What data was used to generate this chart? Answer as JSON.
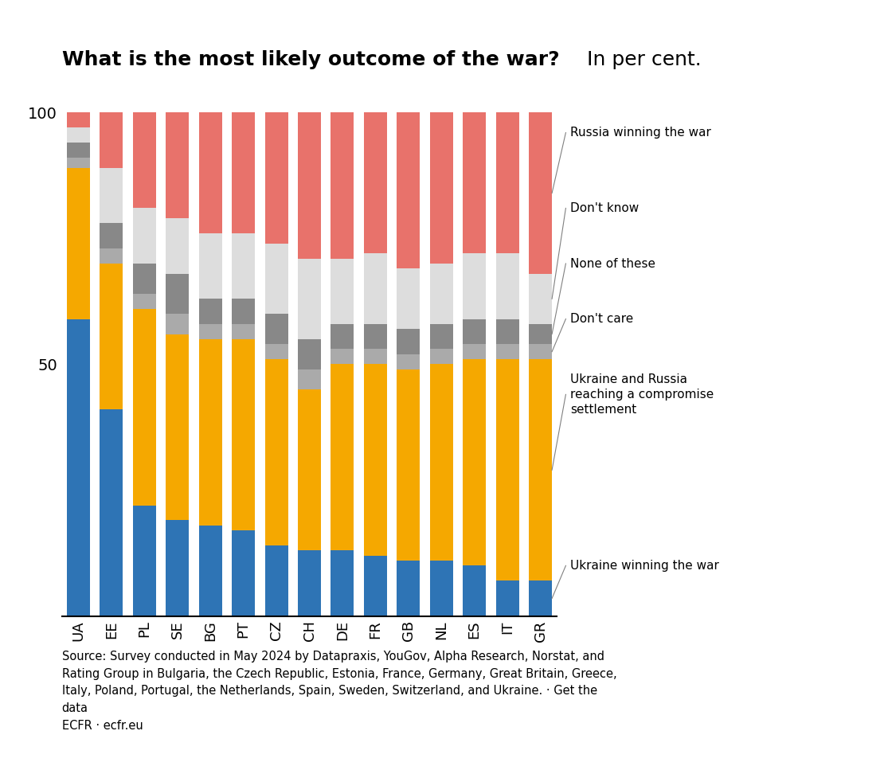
{
  "countries": [
    "UA",
    "EE",
    "PL",
    "SE",
    "BG",
    "PT",
    "CZ",
    "CH",
    "DE",
    "FR",
    "GB",
    "NL",
    "ES",
    "IT",
    "GR"
  ],
  "ukraine_winning": [
    59,
    41,
    22,
    19,
    18,
    17,
    14,
    13,
    13,
    12,
    11,
    11,
    10,
    7,
    7
  ],
  "compromise": [
    30,
    29,
    39,
    37,
    37,
    38,
    37,
    32,
    37,
    38,
    38,
    39,
    41,
    44,
    44
  ],
  "dont_care": [
    2,
    3,
    3,
    4,
    3,
    3,
    3,
    4,
    3,
    3,
    3,
    3,
    3,
    3,
    3
  ],
  "none_of_these": [
    3,
    5,
    6,
    8,
    5,
    5,
    6,
    6,
    5,
    5,
    5,
    5,
    5,
    5,
    4
  ],
  "dont_know": [
    3,
    11,
    11,
    11,
    13,
    13,
    14,
    16,
    13,
    14,
    12,
    12,
    13,
    13,
    10
  ],
  "russia_winning": [
    3,
    11,
    19,
    21,
    24,
    24,
    26,
    29,
    29,
    28,
    31,
    30,
    28,
    28,
    32
  ],
  "color_ukraine_winning": "#2E74B5",
  "color_compromise": "#F5A800",
  "color_dont_care": "#AAAAAA",
  "color_none_of_these": "#888888",
  "color_dont_know": "#DDDDDD",
  "color_russia_winning": "#E8726B",
  "title_bold": "What is the most likely outcome of the war?",
  "title_normal": " In per cent.",
  "source_text": "Source: Survey conducted in May 2024 by Datapraxis, YouGov, Alpha Research, Norstat, and\nRating Group in Bulgaria, the Czech Republic, Estonia, France, Germany, Great Britain, Greece,\nItaly, Poland, Portugal, the Netherlands, Spain, Sweden, Switzerland, and Ukraine. · Get the\ndata\nECFR · ecfr.eu"
}
